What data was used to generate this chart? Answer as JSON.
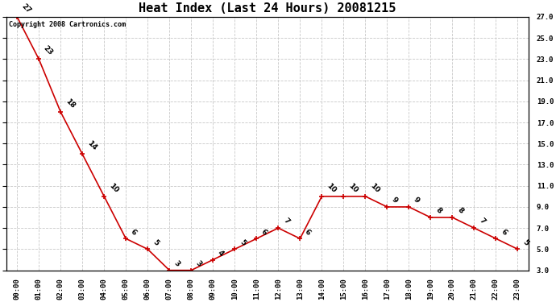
{
  "title": "Heat Index (Last 24 Hours) 20081215",
  "copyright_text": "Copyright 2008 Cartronics.com",
  "x_labels": [
    "00:00",
    "01:00",
    "02:00",
    "03:00",
    "04:00",
    "05:00",
    "06:00",
    "07:00",
    "08:00",
    "09:00",
    "10:00",
    "11:00",
    "12:00",
    "13:00",
    "14:00",
    "15:00",
    "16:00",
    "17:00",
    "18:00",
    "19:00",
    "20:00",
    "21:00",
    "22:00",
    "23:00"
  ],
  "data_points": [
    [
      0,
      27
    ],
    [
      1,
      23
    ],
    [
      2,
      18
    ],
    [
      3,
      14
    ],
    [
      4,
      10
    ],
    [
      5,
      6
    ],
    [
      6,
      5
    ],
    [
      7,
      3
    ],
    [
      8,
      3
    ],
    [
      9,
      4
    ],
    [
      10,
      5
    ],
    [
      11,
      6
    ],
    [
      12,
      7
    ],
    [
      13,
      6
    ],
    [
      14,
      10
    ],
    [
      15,
      10
    ],
    [
      16,
      10
    ],
    [
      17,
      9
    ],
    [
      18,
      9
    ],
    [
      19,
      8
    ],
    [
      20,
      8
    ],
    [
      21,
      7
    ],
    [
      22,
      6
    ],
    [
      23,
      5
    ]
  ],
  "ylim": [
    3.0,
    27.0
  ],
  "yticks": [
    3.0,
    5.0,
    7.0,
    9.0,
    11.0,
    13.0,
    15.0,
    17.0,
    19.0,
    21.0,
    23.0,
    25.0,
    27.0
  ],
  "line_color": "#cc0000",
  "marker_color": "#cc0000",
  "bg_color": "#ffffff",
  "grid_color": "#c8c8c8",
  "title_fontsize": 11,
  "annotation_fontsize": 6.5,
  "copyright_fontsize": 6,
  "tick_fontsize": 6.5
}
